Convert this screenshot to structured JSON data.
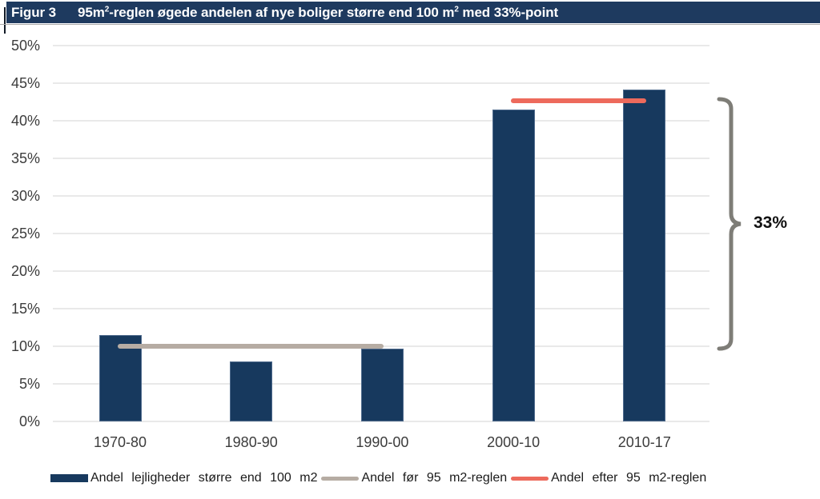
{
  "header": {
    "figure_label": "Figur 3",
    "title": {
      "t1": "95m",
      "sup1": "2",
      "t2": "-reglen øgede andelen af nye boliger større end 100 m",
      "sup2": "2",
      "t3": " med 33%-point"
    }
  },
  "chart_data": {
    "type": "bar",
    "title": "95m²-reglen øgede andelen af nye boliger større end 100 m² med 33%-point",
    "categories": [
      "1970-80",
      "1980-90",
      "1990-00",
      "2000-10",
      "2010-17"
    ],
    "series": [
      {
        "name": "Andel lejligheder større end 100 m2",
        "kind": "bar",
        "values": [
          11.5,
          8.0,
          9.7,
          41.5,
          44.2
        ],
        "color": "#17395E"
      },
      {
        "name": "Andel før 95 m2-reglen",
        "kind": "ref-line",
        "value": 10.0,
        "span_idx": [
          0,
          2
        ],
        "color": "#B6ACA3"
      },
      {
        "name": "Andel efter 95 m2-reglen",
        "kind": "ref-line",
        "value": 42.7,
        "span_idx": [
          3,
          4
        ],
        "color": "#ED6A5C"
      }
    ],
    "xlabel": "",
    "ylabel": "",
    "ylim": [
      0,
      50
    ],
    "ytick_step": 5,
    "ytick_labels": [
      "0%",
      "5%",
      "10%",
      "15%",
      "20%",
      "25%",
      "30%",
      "35%",
      "40%",
      "45%",
      "50%"
    ],
    "grid": true,
    "legend_position": "bottom",
    "annotation": {
      "label": "33%",
      "from_value": 10.0,
      "to_value": 42.7,
      "brace_color": "#7E7D77"
    }
  },
  "colors": {
    "header_bar": "#1E3A5F",
    "bar_fill": "#17395E",
    "line_before": "#B6ACA3",
    "line_after": "#ED6A5C",
    "gridline": "#E9E9E9",
    "axis_text": "#3C3C3C",
    "brace": "#7E7D77"
  }
}
